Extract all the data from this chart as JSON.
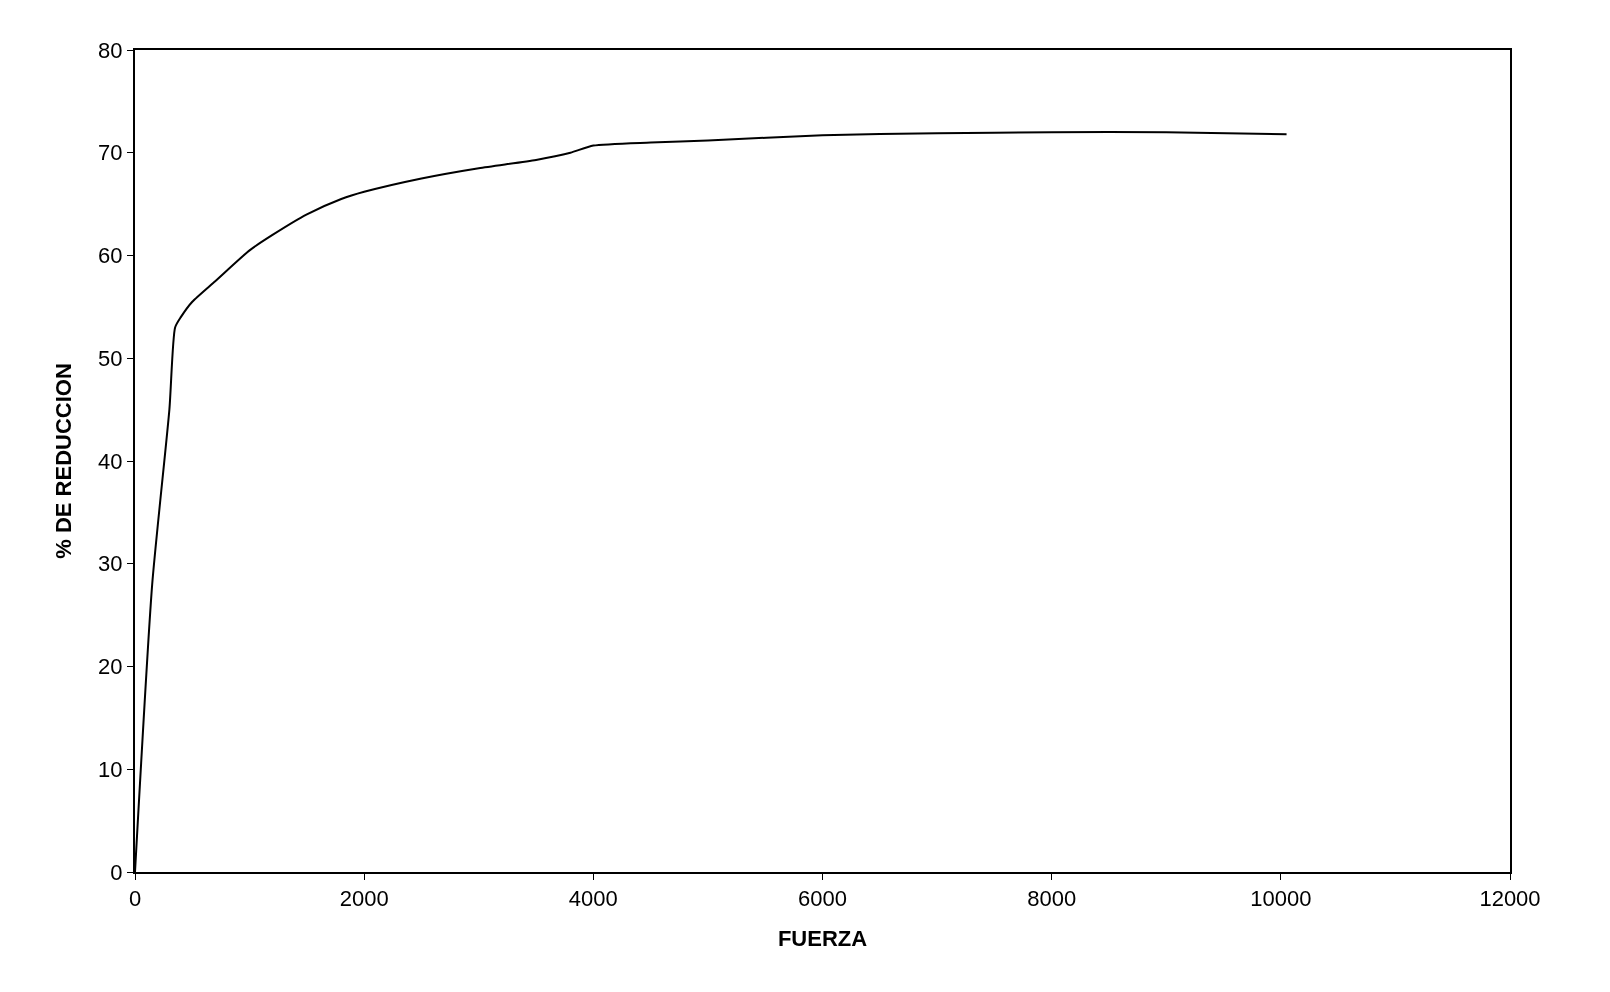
{
  "chart_data": {
    "type": "line",
    "xlabel": "FUERZA",
    "ylabel": "% DE REDUCCION",
    "x": [
      0,
      150,
      300,
      350,
      400,
      500,
      700,
      1000,
      1200,
      1500,
      1800,
      2000,
      2500,
      3000,
      3500,
      3800,
      4000,
      4500,
      5000,
      6000,
      7000,
      8000,
      9000,
      10050
    ],
    "series": [
      {
        "color": "#000000",
        "values": [
          0,
          28,
          45,
          53,
          54,
          55.5,
          57.5,
          60.5,
          62,
          64,
          65.5,
          66.2,
          67.5,
          68.5,
          69.3,
          70,
          70.7,
          71,
          71.2,
          71.7,
          71.9,
          72,
          72,
          71.8
        ]
      }
    ],
    "xlim": [
      0,
      12000
    ],
    "xticks": [
      0,
      2000,
      4000,
      6000,
      8000,
      10000,
      12000
    ],
    "ylim": [
      0,
      80
    ],
    "yticks": [
      0,
      10,
      20,
      30,
      40,
      50,
      60,
      70,
      80
    ],
    "marker": "none",
    "line_style": "solid"
  }
}
